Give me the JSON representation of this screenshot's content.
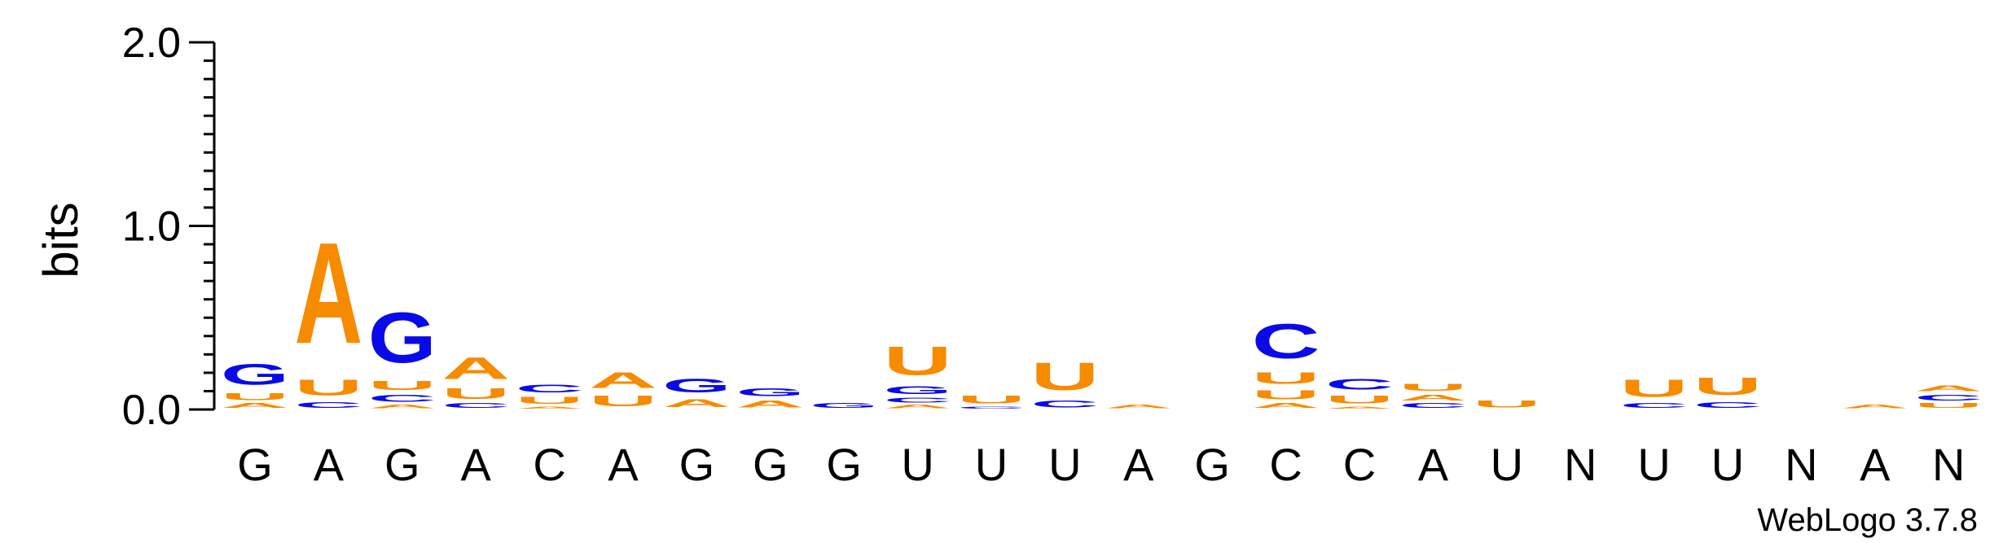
{
  "chart_data": {
    "type": "sequence-logo",
    "ylabel": "bits",
    "ylim": [
      0,
      2.0
    ],
    "yticks": [
      "0.0",
      "1.0",
      "2.0"
    ],
    "yticks_values": [
      0,
      1,
      2
    ],
    "colors": {
      "A": "#f78b00",
      "U": "#f78b00",
      "G": "#0a0ae8",
      "C": "#0a0ae8",
      "N": "#000000"
    },
    "positions": [
      {
        "label": "G",
        "stack": [
          {
            "letter": "A",
            "bits": 0.04
          },
          {
            "letter": "U",
            "bits": 0.06
          },
          {
            "letter": "G",
            "bits": 0.18
          }
        ]
      },
      {
        "label": "A",
        "stack": [
          {
            "letter": "C",
            "bits": 0.05
          },
          {
            "letter": "U",
            "bits": 0.14
          },
          {
            "letter": "A",
            "bits": 0.88
          }
        ]
      },
      {
        "label": "G",
        "stack": [
          {
            "letter": "A",
            "bits": 0.03
          },
          {
            "letter": "C",
            "bits": 0.06
          },
          {
            "letter": "U",
            "bits": 0.08
          },
          {
            "letter": "G",
            "bits": 0.44
          }
        ]
      },
      {
        "label": "A",
        "stack": [
          {
            "letter": "C",
            "bits": 0.04
          },
          {
            "letter": "U",
            "bits": 0.09
          },
          {
            "letter": "A",
            "bits": 0.19
          }
        ]
      },
      {
        "label": "C",
        "stack": [
          {
            "letter": "A",
            "bits": 0.02
          },
          {
            "letter": "U",
            "bits": 0.06
          },
          {
            "letter": "C",
            "bits": 0.07
          }
        ]
      },
      {
        "label": "A",
        "stack": [
          {
            "letter": "U",
            "bits": 0.09
          },
          {
            "letter": "A",
            "bits": 0.14
          }
        ]
      },
      {
        "label": "G",
        "stack": [
          {
            "letter": "A",
            "bits": 0.07
          },
          {
            "letter": "G",
            "bits": 0.12
          }
        ]
      },
      {
        "label": "G",
        "stack": [
          {
            "letter": "A",
            "bits": 0.06
          },
          {
            "letter": "G",
            "bits": 0.07
          }
        ]
      },
      {
        "label": "G",
        "stack": [
          {
            "letter": "G",
            "bits": 0.04
          }
        ]
      },
      {
        "label": "U",
        "stack": [
          {
            "letter": "A",
            "bits": 0.03
          },
          {
            "letter": "C",
            "bits": 0.04
          },
          {
            "letter": "G",
            "bits": 0.07
          },
          {
            "letter": "U",
            "bits": 0.25
          }
        ]
      },
      {
        "label": "U",
        "stack": [
          {
            "letter": "C",
            "bits": 0.02
          },
          {
            "letter": "U",
            "bits": 0.07
          }
        ]
      },
      {
        "label": "U",
        "stack": [
          {
            "letter": "C",
            "bits": 0.06
          },
          {
            "letter": "U",
            "bits": 0.24
          }
        ]
      },
      {
        "label": "A",
        "stack": [
          {
            "letter": "A",
            "bits": 0.03
          }
        ]
      },
      {
        "label": "G",
        "stack": []
      },
      {
        "label": "C",
        "stack": [
          {
            "letter": "A",
            "bits": 0.04
          },
          {
            "letter": "U",
            "bits": 0.08
          },
          {
            "letter": "U",
            "bits": 0.1
          },
          {
            "letter": "C",
            "bits": 0.3
          }
        ]
      },
      {
        "label": "C",
        "stack": [
          {
            "letter": "A",
            "bits": 0.02
          },
          {
            "letter": "U",
            "bits": 0.07
          },
          {
            "letter": "C",
            "bits": 0.09
          }
        ]
      },
      {
        "label": "A",
        "stack": [
          {
            "letter": "C",
            "bits": 0.04
          },
          {
            "letter": "A",
            "bits": 0.05
          },
          {
            "letter": "U",
            "bits": 0.06
          }
        ]
      },
      {
        "label": "U",
        "stack": [
          {
            "letter": "U",
            "bits": 0.06
          }
        ]
      },
      {
        "label": "N",
        "stack": []
      },
      {
        "label": "U",
        "stack": [
          {
            "letter": "C",
            "bits": 0.04
          },
          {
            "letter": "U",
            "bits": 0.15
          }
        ]
      },
      {
        "label": "U",
        "stack": [
          {
            "letter": "C",
            "bits": 0.05
          },
          {
            "letter": "U",
            "bits": 0.15
          }
        ]
      },
      {
        "label": "N",
        "stack": []
      },
      {
        "label": "A",
        "stack": [
          {
            "letter": "A",
            "bits": 0.03
          }
        ]
      },
      {
        "label": "N",
        "stack": [
          {
            "letter": "U",
            "bits": 0.04
          },
          {
            "letter": "C",
            "bits": 0.05
          },
          {
            "letter": "A",
            "bits": 0.05
          }
        ]
      }
    ]
  },
  "credit": "WebLogo 3.7.8"
}
